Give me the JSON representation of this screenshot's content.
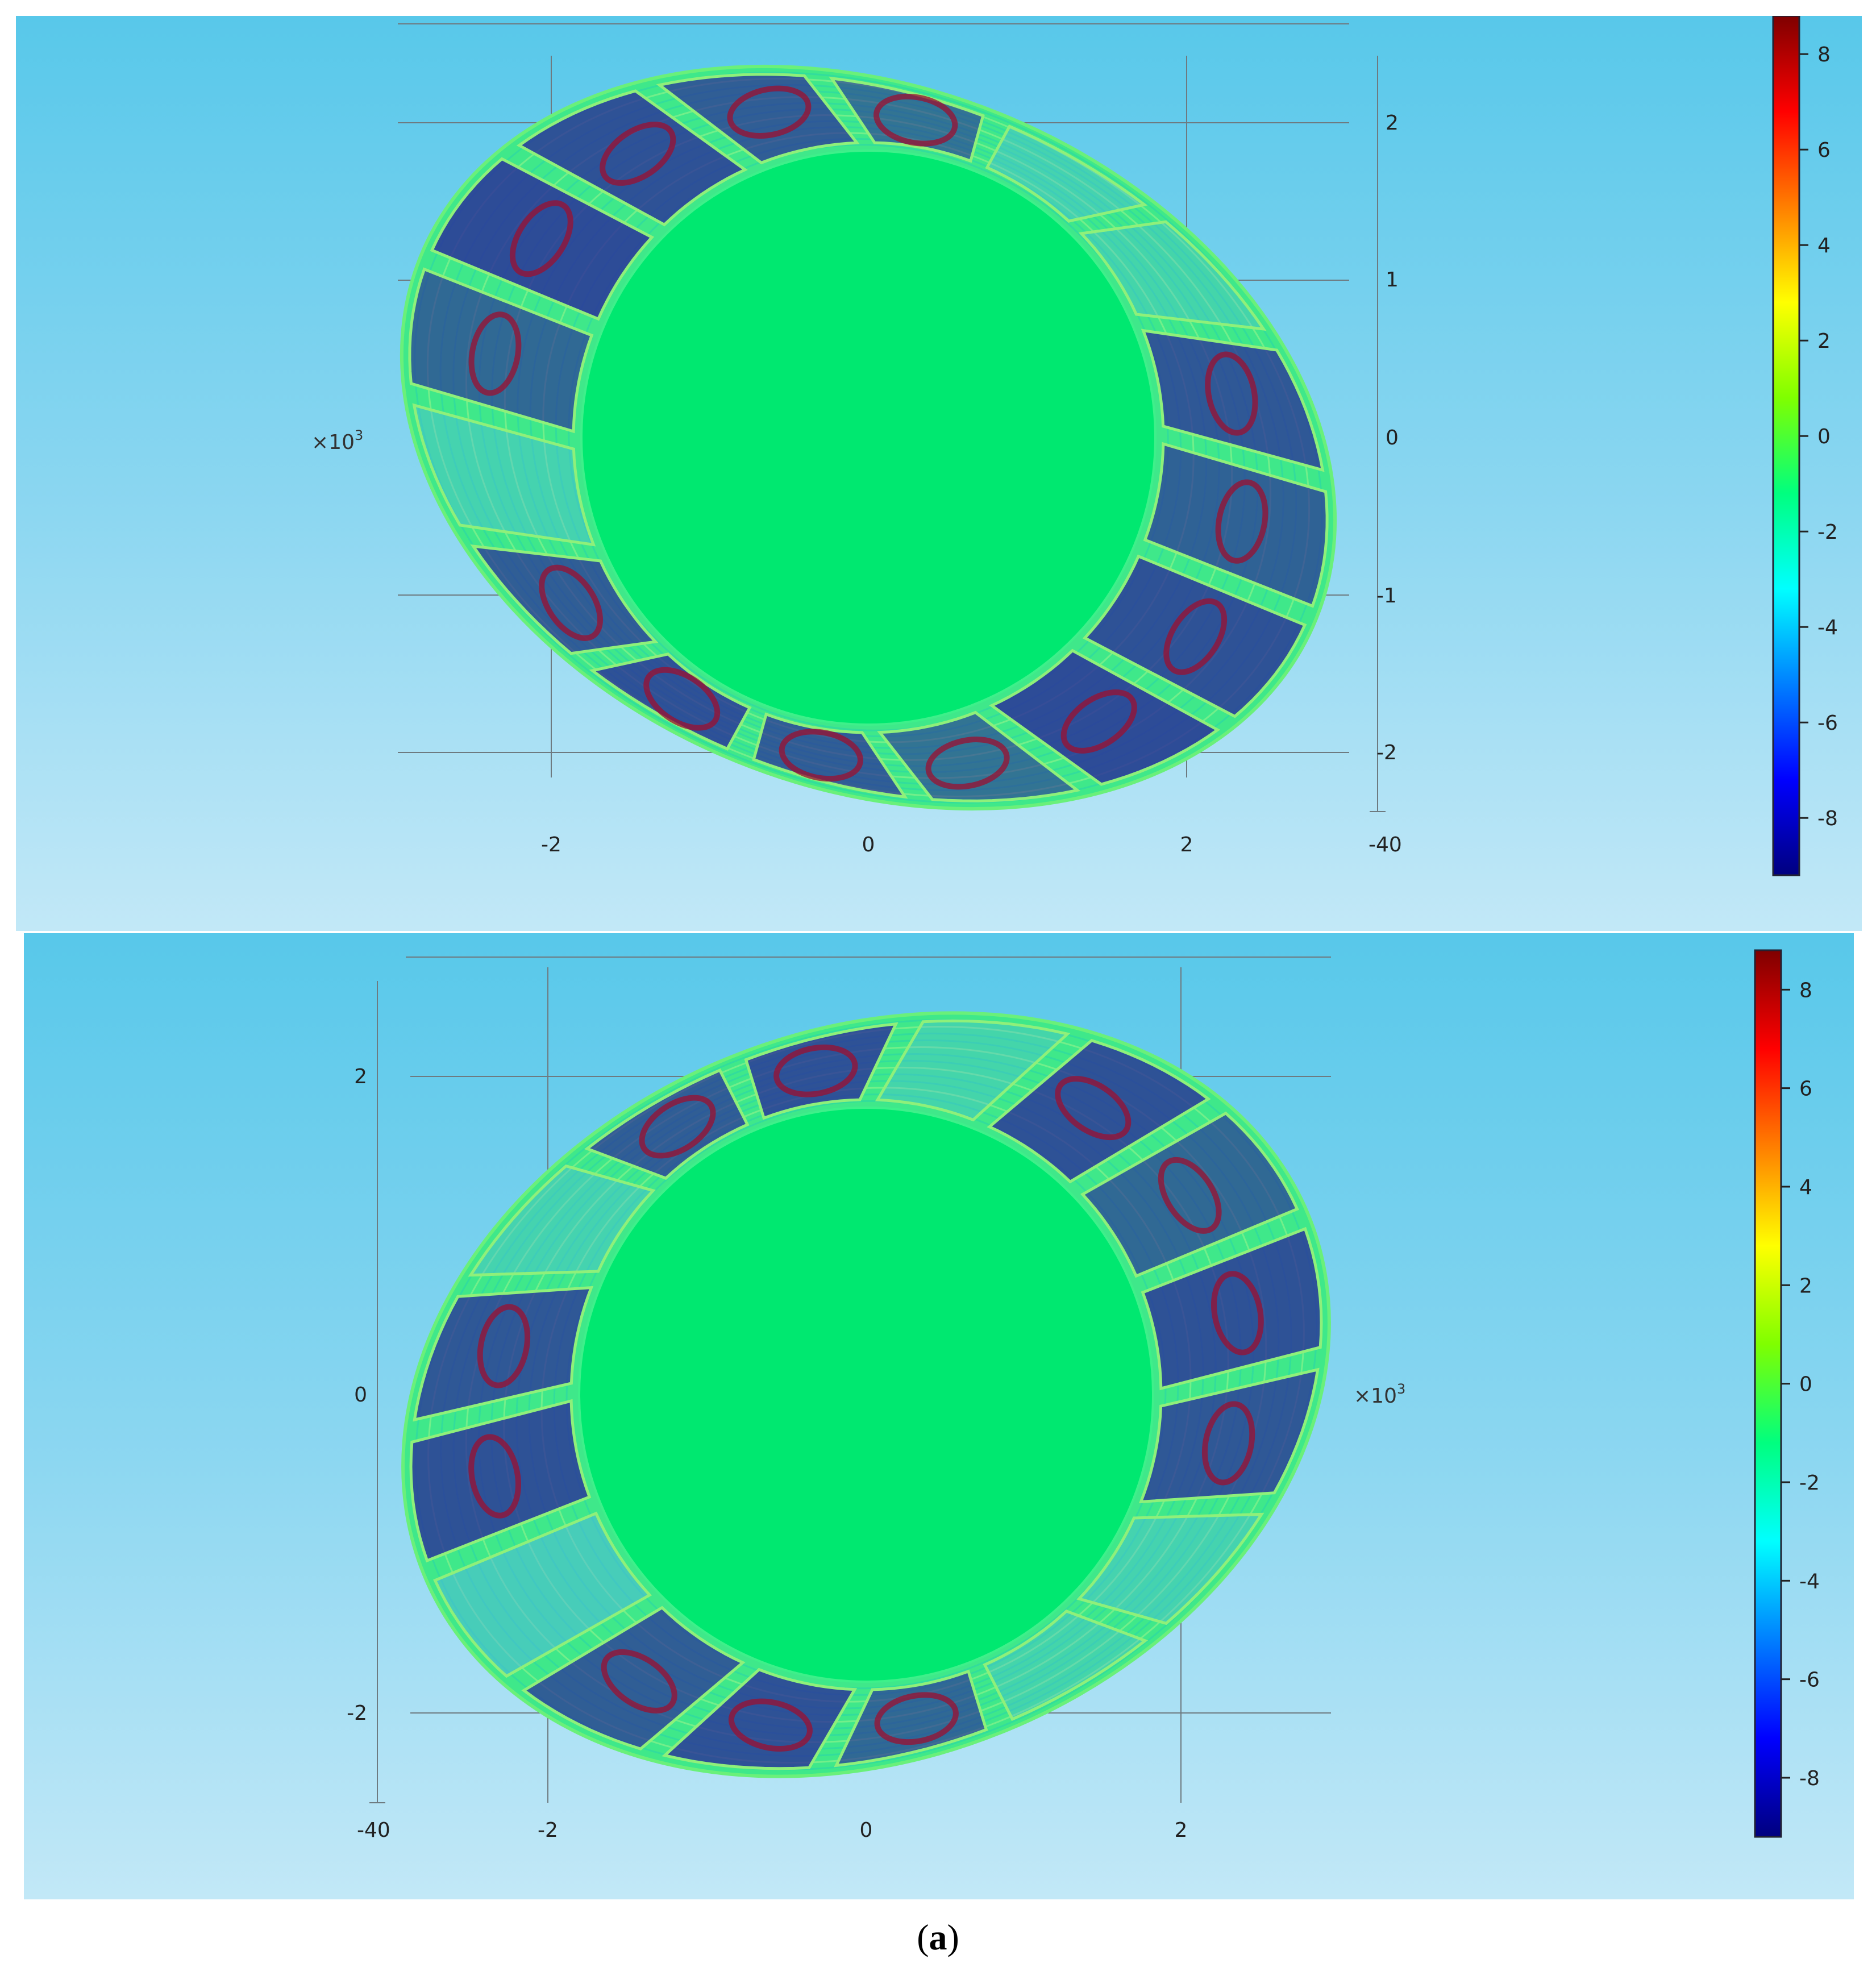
{
  "figure": {
    "caption_open": "(",
    "caption_label": "a",
    "caption_close": ")"
  },
  "colorbar": {
    "colormap": "jet",
    "colors": [
      "#00007f",
      "#0000ff",
      "#007fff",
      "#00ffff",
      "#00ff7f",
      "#7fff00",
      "#ffff00",
      "#ff7f00",
      "#ff0000",
      "#7f0000"
    ],
    "min": -9.2,
    "max": 8.8
  },
  "panels": [
    {
      "id": "top",
      "background_top": "#58c8ea",
      "background_bottom": "#c2e8f7",
      "axis_unit": "×10",
      "axis_unit_exp": "3",
      "x_ticks": [
        "-2",
        "0",
        "2"
      ],
      "y_ticks": [
        "2",
        "1",
        "0",
        "-1",
        "-2"
      ],
      "colorbar_ticks": [
        "8",
        "6",
        "4",
        "2",
        "0",
        "-2",
        "-4",
        "-6",
        "-8"
      ],
      "overlap_label": "-40",
      "ring_tilt_deg": 22,
      "coil_count": 16,
      "field_levels": [
        0.9,
        0.95,
        0.6,
        0.8,
        0.9,
        0.8,
        0.3,
        0.7,
        0.95,
        0.9,
        0.8,
        0.6,
        0.3,
        0.2,
        0.85,
        0.75
      ]
    },
    {
      "id": "bottom",
      "background_top": "#58c8ea",
      "background_bottom": "#c2e8f7",
      "axis_unit": "×10",
      "axis_unit_exp": "3",
      "x_ticks": [
        "-2",
        "0",
        "2"
      ],
      "y_ticks": [
        "2",
        "0",
        "-2"
      ],
      "colorbar_ticks": [
        "8",
        "6",
        "4",
        "2",
        "0",
        "-2",
        "-4",
        "-6",
        "-8"
      ],
      "overlap_label": "-40",
      "ring_tilt_deg": -22,
      "coil_count": 16,
      "field_levels": [
        0.9,
        0.85,
        0.3,
        0.2,
        0.7,
        0.9,
        0.8,
        0.5,
        0.9,
        0.85,
        0.3,
        0.8,
        0.9,
        0.2,
        0.9,
        0.7
      ]
    }
  ]
}
